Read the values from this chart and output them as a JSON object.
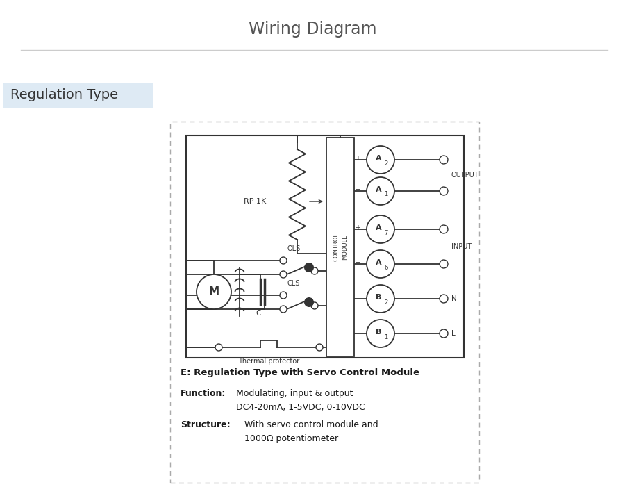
{
  "title": "Wiring Diagram",
  "subtitle": "Regulation Type",
  "subtitle_bg": "#deeaf4",
  "title_color": "#555555",
  "subtitle_color": "#333333",
  "line_color": "#333333",
  "fig_bg": "#ffffff",
  "terminals": [
    "A2",
    "A1",
    "A7",
    "A6",
    "B2",
    "B1"
  ],
  "output_label": "OUTPUT",
  "input_label": "INPUT",
  "rp_label": "RP 1K",
  "ols_label": "OLS",
  "cls_label": "CLS",
  "thermal_label": "Thermal protector",
  "motor_label": "M",
  "cap_label": "C",
  "desc_title": "E: Regulation Type with Servo Control Module",
  "desc_func_bold": "Function:",
  "desc_func_text1": "Modulating, input & output",
  "desc_func_text2": "DC4-20mA, 1-5VDC, 0-10VDC",
  "desc_struct_bold": "Structure:",
  "desc_struct_text1": "With servo control module and",
  "desc_struct_text2": "1000Ω potentiometer"
}
